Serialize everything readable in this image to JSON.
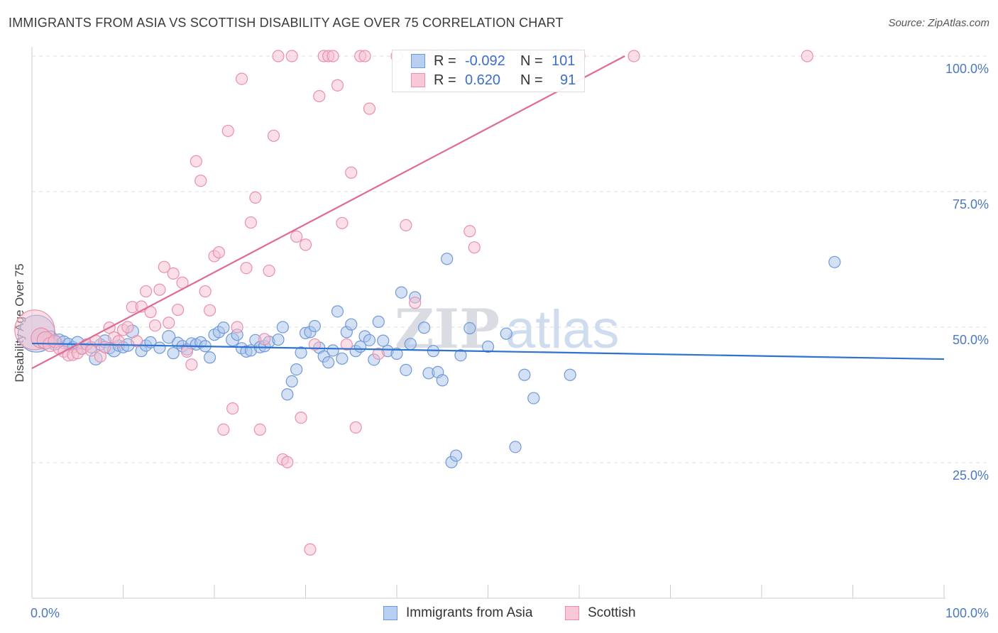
{
  "title": "IMMIGRANTS FROM ASIA VS SCOTTISH DISABILITY AGE OVER 75 CORRELATION CHART",
  "source": "Source: ZipAtlas.com",
  "watermark": {
    "part1": "ZIP",
    "part2": "atlas"
  },
  "legend_top": {
    "rows": [
      {
        "r_label": "R =",
        "r_value": "-0.092",
        "n_label": "N =",
        "n_value": "101"
      },
      {
        "r_label": "R =",
        "r_value": "0.620",
        "n_label": "N =",
        "n_value": "91"
      }
    ]
  },
  "legend_bottom": {
    "items": [
      "Immigrants from Asia",
      "Scottish"
    ]
  },
  "colors": {
    "blue_fill": "#a9c3ec",
    "blue_stroke": "#6f9ad8",
    "blue_line": "#2f72cf",
    "pink_fill": "#f6bfd0",
    "pink_stroke": "#ea8fae",
    "pink_line": "#e06a92",
    "grid": "#dddddd",
    "tick_text": "#4a78c2"
  },
  "chart_data": {
    "type": "scatter",
    "title": "IMMIGRANTS FROM ASIA VS SCOTTISH DISABILITY AGE OVER 75 CORRELATION CHART",
    "xlabel": "",
    "ylabel": "Disability Age Over 75",
    "xlim": [
      0,
      100
    ],
    "ylim": [
      0,
      102
    ],
    "x_tick_labels": [
      "0.0%",
      "100.0%"
    ],
    "y_ticks": [
      {
        "value": 100,
        "label": "100.0%"
      },
      {
        "value": 75,
        "label": "75.0%"
      },
      {
        "value": 50,
        "label": "50.0%"
      },
      {
        "value": 25,
        "label": "25.0%"
      }
    ],
    "grid": true,
    "legend_position": "bottom-center",
    "series": [
      {
        "name": "Immigrants from Asia",
        "color": "#a9c3ec",
        "r": -0.092,
        "n": 101,
        "trend": {
          "x": [
            0,
            100
          ],
          "y": [
            47.0,
            44.1
          ]
        },
        "points": [
          [
            0.5,
            48.8,
            26
          ],
          [
            1,
            48,
            14
          ],
          [
            1.5,
            47.5,
            12
          ],
          [
            2,
            48,
            10
          ],
          [
            2.5,
            47.1,
            10
          ],
          [
            3,
            47.7,
            8
          ],
          [
            3.5,
            47.2,
            9
          ],
          [
            4,
            46.9,
            8
          ],
          [
            4.5,
            46.3,
            8
          ],
          [
            5,
            47.1,
            9
          ],
          [
            5.5,
            46.1,
            8
          ],
          [
            6,
            46.8,
            8
          ],
          [
            6.5,
            46.3,
            8
          ],
          [
            7,
            44.2,
            9
          ],
          [
            7.5,
            46.8,
            8
          ],
          [
            8,
            47.4,
            9
          ],
          [
            8.5,
            46.1,
            8
          ],
          [
            9,
            45.7,
            9
          ],
          [
            9.5,
            46.6,
            8
          ],
          [
            10,
            46.3,
            8
          ],
          [
            10.5,
            46.7,
            9
          ],
          [
            11,
            49.2,
            9
          ],
          [
            12,
            45.6,
            8
          ],
          [
            12.5,
            46.6,
            8
          ],
          [
            13,
            47.2,
            8
          ],
          [
            14,
            46.2,
            8
          ],
          [
            15,
            48.2,
            9
          ],
          [
            15.5,
            45.2,
            8
          ],
          [
            16,
            47.1,
            8
          ],
          [
            16.5,
            46.5,
            8
          ],
          [
            17,
            45.9,
            8
          ],
          [
            17.5,
            47,
            8
          ],
          [
            18,
            46.8,
            8
          ],
          [
            18.5,
            47.2,
            8
          ],
          [
            19,
            46.5,
            8
          ],
          [
            19.5,
            44.4,
            8
          ],
          [
            20,
            48.6,
            8
          ],
          [
            20.5,
            49.1,
            8
          ],
          [
            21,
            49.9,
            8
          ],
          [
            22,
            47.7,
            9
          ],
          [
            22.5,
            48.6,
            8
          ],
          [
            23,
            46.1,
            8
          ],
          [
            23.5,
            45.5,
            8
          ],
          [
            24,
            45.7,
            8
          ],
          [
            24.5,
            47.6,
            8
          ],
          [
            25,
            46.3,
            8
          ],
          [
            25.5,
            46.5,
            8
          ],
          [
            26,
            47.3,
            8
          ],
          [
            27,
            47.7,
            8
          ],
          [
            27.5,
            50.0,
            8
          ],
          [
            28,
            37.6,
            8
          ],
          [
            28.5,
            40,
            8
          ],
          [
            29,
            42.2,
            8
          ],
          [
            29.5,
            45.3,
            8
          ],
          [
            30,
            48.9,
            8
          ],
          [
            30.5,
            49.1,
            8
          ],
          [
            31,
            50.2,
            8
          ],
          [
            31.5,
            46.2,
            8
          ],
          [
            32,
            44.6,
            8
          ],
          [
            32.5,
            43.5,
            8
          ],
          [
            33,
            45.7,
            8
          ],
          [
            33.5,
            52.9,
            8
          ],
          [
            34,
            44.2,
            8
          ],
          [
            34.5,
            49.1,
            8
          ],
          [
            35,
            50.5,
            8
          ],
          [
            35.5,
            45.6,
            8
          ],
          [
            36,
            46.4,
            8
          ],
          [
            36.5,
            48.3,
            8
          ],
          [
            37,
            47.6,
            8
          ],
          [
            37.5,
            44,
            8
          ],
          [
            38,
            51,
            8
          ],
          [
            38.5,
            47.5,
            8
          ],
          [
            39,
            45.6,
            8
          ],
          [
            40,
            45.1,
            8
          ],
          [
            40.5,
            56.4,
            8
          ],
          [
            41,
            42.1,
            8
          ],
          [
            41.5,
            46.9,
            8
          ],
          [
            42,
            55.5,
            8
          ],
          [
            43,
            49.9,
            8
          ],
          [
            43.5,
            41.5,
            8
          ],
          [
            44,
            45.6,
            8
          ],
          [
            44.5,
            41.7,
            8
          ],
          [
            45,
            40.2,
            8
          ],
          [
            45.5,
            62.6,
            8
          ],
          [
            46,
            25.1,
            8
          ],
          [
            46.5,
            26.3,
            8
          ],
          [
            47,
            44.8,
            8
          ],
          [
            48,
            49.8,
            8
          ],
          [
            50,
            46.4,
            8
          ],
          [
            52,
            48.8,
            8
          ],
          [
            53,
            27.9,
            8
          ],
          [
            54,
            41.2,
            8
          ],
          [
            55,
            36.9,
            8
          ],
          [
            59,
            41.2,
            8
          ],
          [
            88,
            62,
            8
          ]
        ]
      },
      {
        "name": "Scottish",
        "color": "#f6bfd0",
        "r": 0.62,
        "n": 91,
        "trend": {
          "x": [
            0,
            65
          ],
          "y": [
            42.4,
            100
          ]
        },
        "points": [
          [
            0.3,
            49.5,
            28
          ],
          [
            1,
            48,
            14
          ],
          [
            1.5,
            47.6,
            12
          ],
          [
            2,
            46.8,
            10
          ],
          [
            2.5,
            47.4,
            9
          ],
          [
            3,
            46,
            8
          ],
          [
            3.5,
            45.5,
            8
          ],
          [
            4,
            44.8,
            8
          ],
          [
            4.5,
            44.9,
            8
          ],
          [
            5,
            45.2,
            8
          ],
          [
            5.5,
            46,
            8
          ],
          [
            6,
            46.8,
            8
          ],
          [
            6.5,
            45.7,
            8
          ],
          [
            7,
            47.5,
            8
          ],
          [
            7.5,
            44.6,
            8
          ],
          [
            8,
            46.3,
            8
          ],
          [
            8.5,
            49.9,
            8
          ],
          [
            9,
            48.1,
            8
          ],
          [
            9.5,
            47.4,
            8
          ],
          [
            10,
            49.5,
            8
          ],
          [
            10.5,
            50.0,
            8
          ],
          [
            11,
            53.7,
            8
          ],
          [
            11.5,
            47.4,
            8
          ],
          [
            12,
            53.8,
            8
          ],
          [
            12.5,
            56.6,
            8
          ],
          [
            13,
            52.8,
            8
          ],
          [
            13.5,
            50.3,
            8
          ],
          [
            14,
            56.9,
            8
          ],
          [
            14.5,
            61.1,
            8
          ],
          [
            15,
            50.8,
            8
          ],
          [
            15.5,
            59.9,
            8
          ],
          [
            16,
            53.2,
            8
          ],
          [
            16.5,
            58.2,
            8
          ],
          [
            17,
            45.5,
            8
          ],
          [
            17.5,
            43.1,
            8
          ],
          [
            18,
            80.6,
            8
          ],
          [
            18.5,
            77.0,
            8
          ],
          [
            19,
            56.6,
            8
          ],
          [
            19.5,
            53.1,
            8
          ],
          [
            20,
            63.1,
            8
          ],
          [
            20.5,
            63.8,
            8
          ],
          [
            21,
            31.1,
            8
          ],
          [
            21.5,
            86.2,
            8
          ],
          [
            22,
            35.0,
            8
          ],
          [
            22.5,
            50.0,
            8
          ],
          [
            23,
            95.8,
            8
          ],
          [
            23.5,
            60.9,
            8
          ],
          [
            24,
            69.3,
            8
          ],
          [
            24.5,
            73.9,
            8
          ],
          [
            25,
            31.1,
            8
          ],
          [
            25.5,
            47.8,
            8
          ],
          [
            26,
            60.4,
            8
          ],
          [
            26.5,
            85.3,
            8
          ],
          [
            27,
            100,
            8
          ],
          [
            27.5,
            25.6,
            8
          ],
          [
            28,
            25.1,
            8
          ],
          [
            28.5,
            100,
            8
          ],
          [
            29,
            66.7,
            8
          ],
          [
            29.5,
            33.3,
            8
          ],
          [
            30,
            65.2,
            8
          ],
          [
            30.5,
            9.0,
            8
          ],
          [
            31,
            46.8,
            8
          ],
          [
            31.5,
            92.6,
            8
          ],
          [
            32,
            100,
            8
          ],
          [
            32.5,
            100,
            8
          ],
          [
            33,
            100,
            8
          ],
          [
            33.5,
            94.6,
            8
          ],
          [
            34,
            69.2,
            8
          ],
          [
            34.5,
            46.8,
            8
          ],
          [
            35,
            78.5,
            8
          ],
          [
            35.5,
            31.5,
            8
          ],
          [
            36,
            100,
            8
          ],
          [
            36.5,
            100,
            8
          ],
          [
            37,
            90.3,
            8
          ],
          [
            38,
            45.1,
            8
          ],
          [
            40,
            100,
            8
          ],
          [
            41,
            68.8,
            8
          ],
          [
            42,
            54.5,
            8
          ],
          [
            44,
            100,
            8
          ],
          [
            46,
            100,
            8
          ],
          [
            48,
            67.7,
            8
          ],
          [
            48.5,
            64.7,
            8
          ],
          [
            50,
            100,
            8
          ],
          [
            55,
            100,
            8
          ],
          [
            60,
            100,
            8
          ],
          [
            66,
            100,
            8
          ],
          [
            85,
            100,
            8
          ]
        ]
      }
    ]
  }
}
